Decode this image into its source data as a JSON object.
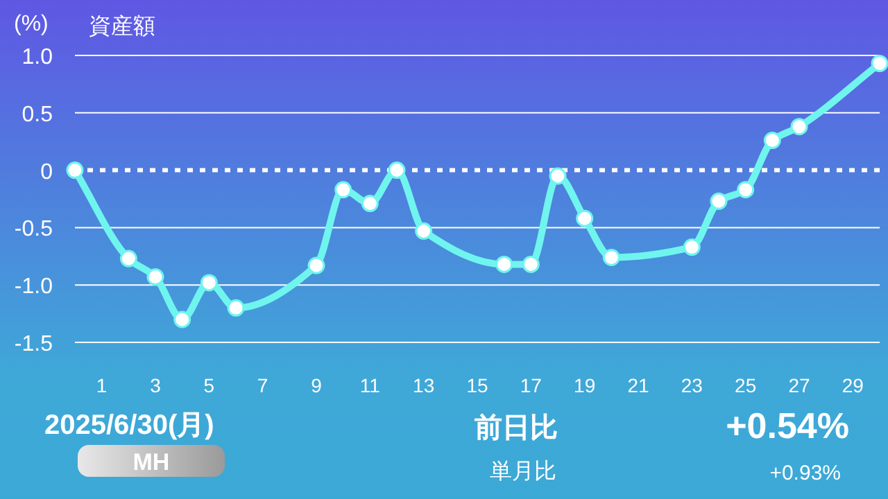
{
  "chart_data": {
    "type": "line",
    "title": "資産額",
    "ylabel": "(%)",
    "x": [
      0,
      2,
      3,
      4,
      5,
      6,
      9,
      10,
      11,
      12,
      13,
      16,
      17,
      18,
      19,
      20,
      23,
      24,
      25,
      26,
      27,
      30
    ],
    "series": [
      {
        "color": "#6ff5ee",
        "values": [
          0,
          -0.77,
          -0.93,
          -1.3,
          -0.98,
          -1.2,
          -0.83,
          -0.17,
          -0.29,
          0,
          -0.53,
          -0.82,
          -0.82,
          -0.05,
          -0.42,
          -0.76,
          -0.67,
          -0.27,
          -0.17,
          0.26,
          0.38,
          0.93
        ]
      }
    ],
    "xlim": [
      0,
      30
    ],
    "xticks": [
      1,
      3,
      5,
      7,
      9,
      11,
      13,
      15,
      17,
      19,
      21,
      23,
      25,
      27,
      29
    ],
    "ylim": [
      -1.5,
      1.0
    ],
    "yticks": [
      {
        "value": 1,
        "label": "1.0"
      },
      0.5,
      0,
      -0.5,
      {
        "value": -1,
        "label": "-1.0"
      },
      -1.5
    ],
    "ref_lines": [
      {
        "axis": "y",
        "value": 0,
        "color": "#ffffff",
        "line_style": "dotted"
      }
    ],
    "grid": "y",
    "marker": "circle",
    "line_style": "solid",
    "annotations": [
      "2025/6/30(月)",
      "MH",
      "前日比",
      "+0.54%",
      "単月比",
      "+0.93%"
    ]
  }
}
